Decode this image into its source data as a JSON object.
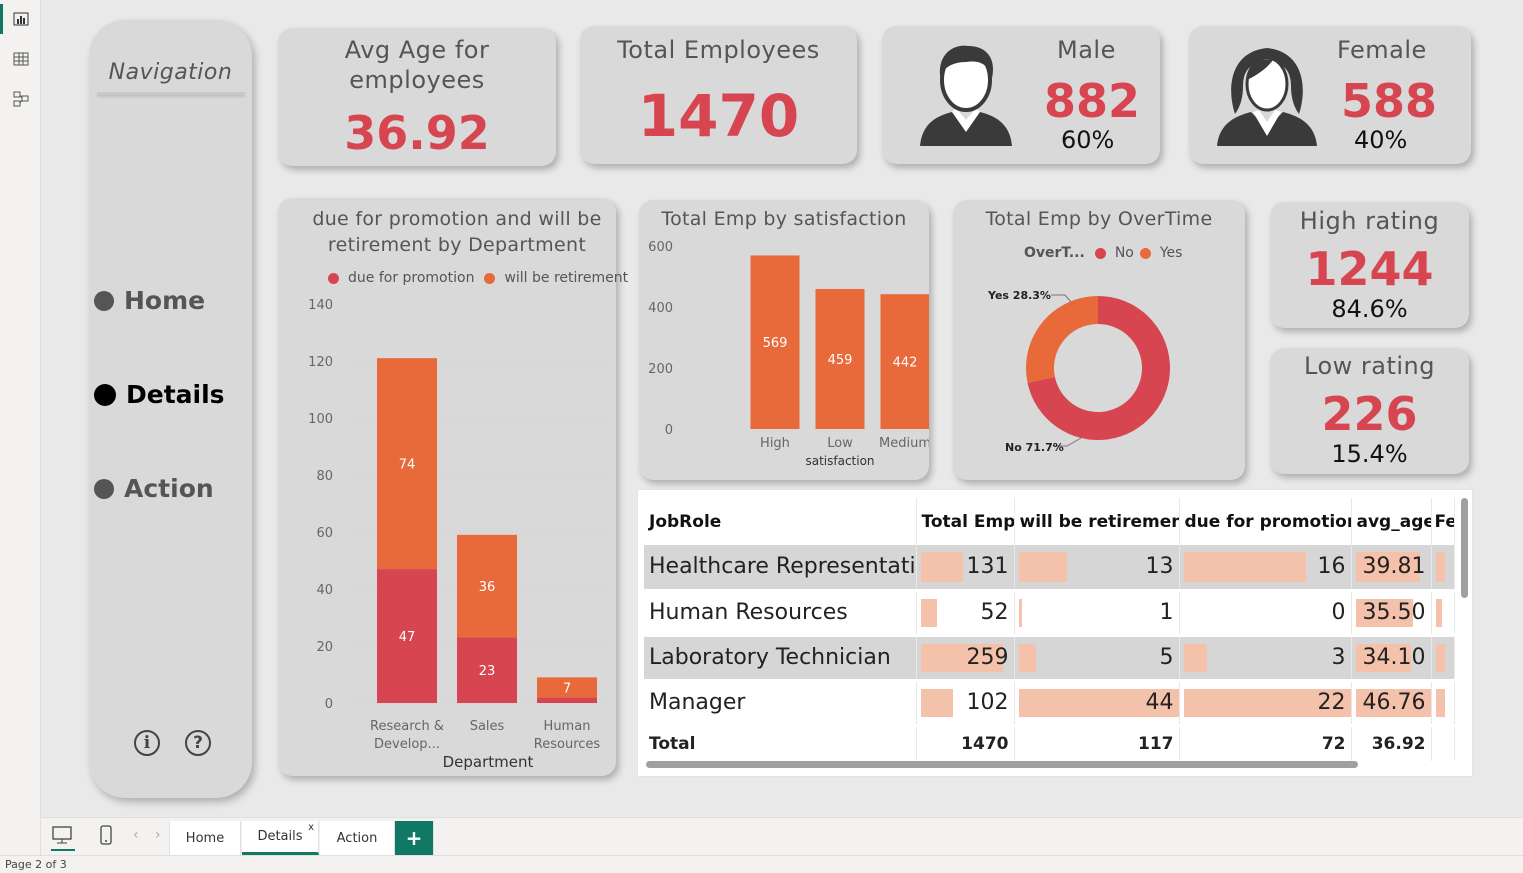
{
  "nav": {
    "title": "Navigation",
    "items": [
      {
        "label": "Home",
        "active": false
      },
      {
        "label": "Details",
        "active": true
      },
      {
        "label": "Action",
        "active": false
      }
    ],
    "info_glyph": "i",
    "help_glyph": "?"
  },
  "kpis": {
    "avg_age": {
      "label_line1": "Avg Age for",
      "label_line2": "employees",
      "value": "36.92"
    },
    "total_employees": {
      "label": "Total Employees",
      "value": "1470"
    },
    "male": {
      "label": "Male",
      "value": "882",
      "pct": "60%",
      "icon": "male-person-icon"
    },
    "female": {
      "label": "Female",
      "value": "588",
      "pct": "40%",
      "icon": "female-person-icon"
    },
    "high_rating": {
      "label": "High rating",
      "value": "1244",
      "pct": "84.6%"
    },
    "low_rating": {
      "label": "Low rating",
      "value": "226",
      "pct": "15.4%"
    }
  },
  "colors": {
    "red": "#d64550",
    "orange": "#e8693a",
    "bar_bg": "#f4c1aa",
    "accent": "#117865"
  },
  "chart_data": [
    {
      "type": "bar",
      "stacked": true,
      "title_line1": "due for promotion and will be",
      "title_line2": "retirement by Department",
      "xlabel": "Department",
      "categories": [
        "Research & Develop...",
        "Sales",
        "Human Resources"
      ],
      "category_lines": [
        [
          "Research &",
          "Develop..."
        ],
        [
          "Sales"
        ],
        [
          "Human",
          "Resources"
        ]
      ],
      "series": [
        {
          "name": "due for promotion",
          "values": [
            47,
            23,
            2
          ]
        },
        {
          "name": "will be retirement",
          "values": [
            74,
            36,
            7
          ]
        }
      ],
      "data_labels": [
        [
          "47",
          "23",
          ""
        ],
        [
          "74",
          "36",
          "7"
        ]
      ],
      "ylim": [
        0,
        140
      ],
      "yticks": [
        0,
        20,
        40,
        60,
        80,
        100,
        120,
        140
      ],
      "legend_position": "top"
    },
    {
      "type": "bar",
      "title": "Total Emp by satisfaction",
      "xlabel": "satisfaction",
      "categories": [
        "High",
        "Low",
        "Medium"
      ],
      "values": [
        569,
        459,
        442
      ],
      "ylim": [
        0,
        600
      ],
      "yticks": [
        0,
        200,
        400,
        600
      ]
    },
    {
      "type": "pie",
      "donut": true,
      "title": "Total Emp by OverTime",
      "legend_title": "OverT...",
      "categories": [
        "No",
        "Yes"
      ],
      "values": [
        71.7,
        28.3
      ],
      "labels": [
        "No 71.7%",
        "Yes 28.3%"
      ],
      "legend_position": "top"
    }
  ],
  "table": {
    "columns": [
      "JobRole",
      "Total Emp",
      "will be retirement",
      "due for promotion",
      "avg_age",
      "Fe"
    ],
    "rows": [
      {
        "role": "Healthcare Representative",
        "total": "131",
        "retire": "13",
        "promo": "16",
        "age": "39.81",
        "total_frac": 0.45,
        "retire_frac": 0.3,
        "promo_frac": 0.73,
        "age_frac": 0.85,
        "fe_frac": 0.8
      },
      {
        "role": "Human Resources",
        "total": "52",
        "retire": "1",
        "promo": "0",
        "age": "35.50",
        "total_frac": 0.18,
        "retire_frac": 0.02,
        "promo_frac": 0.0,
        "age_frac": 0.76,
        "fe_frac": 0.5
      },
      {
        "role": "Laboratory Technician",
        "total": "259",
        "retire": "5",
        "promo": "3",
        "age": "34.10",
        "total_frac": 0.88,
        "retire_frac": 0.11,
        "promo_frac": 0.14,
        "age_frac": 0.73,
        "fe_frac": 0.8
      },
      {
        "role": "Manager",
        "total": "102",
        "retire": "44",
        "promo": "22",
        "age": "46.76",
        "total_frac": 0.35,
        "retire_frac": 1.0,
        "promo_frac": 1.0,
        "age_frac": 1.0,
        "fe_frac": 0.8
      }
    ],
    "total": {
      "label": "Total",
      "total": "1470",
      "retire": "117",
      "promo": "72",
      "age": "36.92"
    }
  },
  "tabs": {
    "pages": [
      {
        "label": "Home",
        "active": false
      },
      {
        "label": "Details",
        "active": true
      },
      {
        "label": "Action",
        "active": false
      }
    ],
    "close_glyph": "x",
    "add_glyph": "+",
    "prev_glyph": "‹",
    "next_glyph": "›"
  },
  "status": {
    "page_indicator": "Page 2 of 3"
  }
}
